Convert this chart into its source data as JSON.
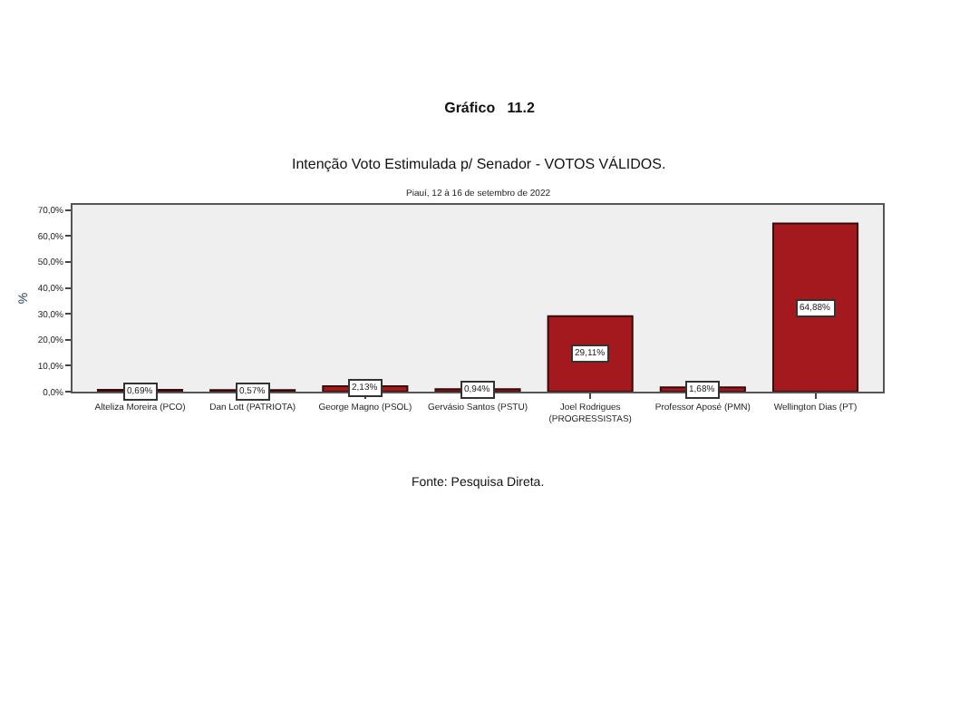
{
  "chart_data": {
    "type": "bar",
    "title": "Gráfico   11.2",
    "subtitle": "Intenção Voto Estimulada p/ Senador - VOTOS VÁLIDOS.",
    "annotations": [
      "Piauí, 12 à 16 de setembro de 2022",
      "Fonte: Pesquisa Direta."
    ],
    "ylabel": "%",
    "categories": [
      "Alteliza Moreira (PCO)",
      "Dan Lott (PATRIOTA)",
      "George Magno (PSOL)",
      "Gervásio Santos (PSTU)",
      "Joel Rodrigues\n(PROGRESSISTAS)",
      "Professor Aposé (PMN)",
      "Wellington Dias (PT)"
    ],
    "values": [
      0.69,
      0.57,
      2.13,
      0.94,
      29.11,
      1.68,
      64.88
    ],
    "value_labels": [
      "0,69%",
      "0,57%",
      "2,13%",
      "0,94%",
      "29,11%",
      "1,68%",
      "64,88%"
    ],
    "color": "#a3191e",
    "ylim": [
      0,
      72
    ],
    "yticks": [
      {
        "value": 0,
        "label": "0,0%"
      },
      {
        "value": 10,
        "label": "10,0%"
      },
      {
        "value": 20,
        "label": "20,0%"
      },
      {
        "value": 30,
        "label": "30,0%"
      },
      {
        "value": 40,
        "label": "40,0%"
      },
      {
        "value": 50,
        "label": "50,0%"
      },
      {
        "value": 60,
        "label": "60,0%"
      },
      {
        "value": 70,
        "label": "70,0%"
      }
    ],
    "grid": false,
    "legend": false
  }
}
